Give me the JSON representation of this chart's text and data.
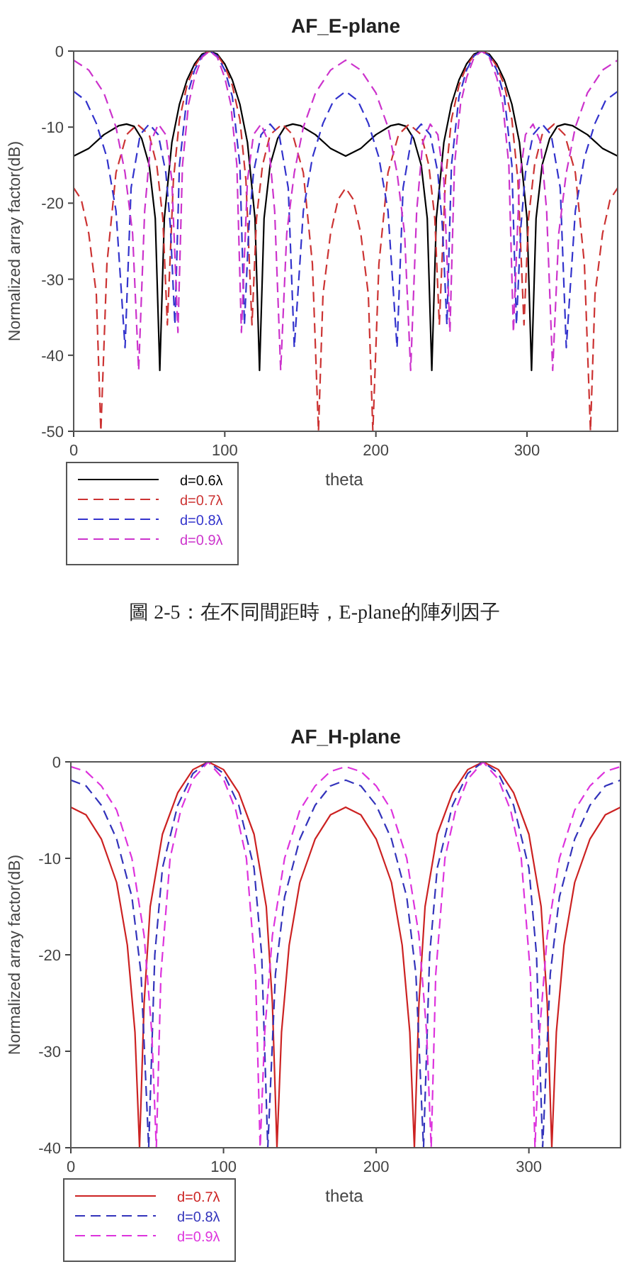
{
  "chart_data": [
    {
      "type": "line",
      "title": "AF_E-plane",
      "xlabel": "theta",
      "ylabel": "Normalized array factor(dB)",
      "xlim": [
        0,
        360
      ],
      "xticks": [
        0,
        100,
        200,
        300
      ],
      "ylim": [
        -50,
        0
      ],
      "yticks": [
        0,
        -10,
        -20,
        -30,
        -40,
        -50
      ],
      "legend": "bottom left",
      "annotations": [
        "圖 2-5：在不同間距時，E-plane的陣列因子"
      ],
      "series": [
        {
          "name": "d=0.6λ",
          "color": "#000000",
          "line_style": "solid",
          "x": [
            0,
            10,
            20,
            30,
            35,
            40,
            45,
            50,
            54,
            57,
            60,
            65,
            70,
            75,
            80,
            85,
            90,
            95,
            100,
            105,
            110,
            115,
            120,
            123,
            126,
            130,
            135,
            140,
            145,
            150,
            160,
            170,
            180,
            190,
            200,
            210,
            215,
            220,
            225,
            230,
            234,
            237,
            240,
            245,
            250,
            255,
            260,
            265,
            270,
            275,
            280,
            285,
            290,
            295,
            300,
            303,
            306,
            310,
            315,
            320,
            325,
            330,
            340,
            350,
            360
          ],
          "values": [
            -13.8,
            -12.8,
            -11,
            -9.8,
            -9.6,
            -9.9,
            -11.5,
            -15,
            -22,
            -42,
            -22,
            -12,
            -7,
            -3.8,
            -1.7,
            -0.4,
            0,
            -0.4,
            -1.7,
            -3.8,
            -7,
            -12,
            -22,
            -42,
            -22,
            -15,
            -11.5,
            -9.9,
            -9.6,
            -9.8,
            -11,
            -12.8,
            -13.8,
            -12.8,
            -11,
            -9.8,
            -9.6,
            -9.9,
            -11.5,
            -15,
            -22,
            -42,
            -22,
            -12,
            -7,
            -3.8,
            -1.7,
            -0.4,
            0,
            -0.4,
            -1.7,
            -3.8,
            -7,
            -12,
            -22,
            -42,
            -22,
            -15,
            -11.5,
            -9.9,
            -9.6,
            -9.8,
            -11,
            -12.8,
            -13.8
          ]
        },
        {
          "name": "d=0.7λ",
          "color": "#cc3333",
          "line_style": "dashed",
          "x": [
            0,
            5,
            10,
            15,
            18,
            22,
            28,
            35,
            42,
            50,
            55,
            59,
            62,
            66,
            70,
            75,
            80,
            85,
            90,
            95,
            100,
            105,
            110,
            114,
            118,
            121,
            125,
            130,
            138,
            145,
            152,
            158,
            162,
            165,
            170,
            175,
            180,
            185,
            190,
            195,
            198,
            202,
            208,
            215,
            222,
            230,
            235,
            239,
            242,
            246,
            250,
            255,
            260,
            265,
            270,
            275,
            280,
            285,
            290,
            294,
            298,
            301,
            305,
            310,
            318,
            325,
            332,
            338,
            342,
            345,
            350,
            355,
            360
          ],
          "values": [
            -18,
            -19.5,
            -24,
            -32,
            -50,
            -28,
            -16,
            -11,
            -9.6,
            -11,
            -15,
            -22,
            -36,
            -17,
            -9,
            -4.5,
            -2,
            -0.5,
            0,
            -0.5,
            -2,
            -4.5,
            -9,
            -17,
            -36,
            -22,
            -15,
            -11,
            -9.6,
            -11,
            -16,
            -28,
            -50,
            -32,
            -24,
            -19.5,
            -18,
            -19.5,
            -24,
            -32,
            -50,
            -28,
            -16,
            -11,
            -9.6,
            -11,
            -15,
            -22,
            -36,
            -17,
            -9,
            -4.5,
            -2,
            -0.5,
            0,
            -0.5,
            -2,
            -4.5,
            -9,
            -17,
            -36,
            -22,
            -15,
            -11,
            -9.6,
            -11,
            -16,
            -28,
            -50,
            -32,
            -24,
            -19.5,
            -18
          ]
        },
        {
          "name": "d=0.8λ",
          "color": "#3333cc",
          "line_style": "dashed",
          "x": [
            0,
            8,
            15,
            22,
            28,
            34,
            38,
            44,
            50,
            56,
            61,
            64,
            67,
            70,
            75,
            80,
            85,
            90,
            95,
            100,
            105,
            110,
            113,
            116,
            119,
            124,
            130,
            136,
            142,
            146,
            152,
            158,
            165,
            172,
            180,
            188,
            195,
            202,
            208,
            214,
            218,
            224,
            230,
            236,
            241,
            244,
            247,
            250,
            255,
            260,
            265,
            270,
            275,
            280,
            285,
            290,
            293,
            296,
            299,
            304,
            310,
            316,
            322,
            326,
            332,
            338,
            345,
            352,
            360
          ],
          "values": [
            -5.3,
            -6.5,
            -9.5,
            -14,
            -21,
            -39,
            -18,
            -11,
            -9.6,
            -11,
            -16,
            -23,
            -36,
            -15,
            -6,
            -2.5,
            -0.6,
            0,
            -0.6,
            -2.5,
            -6,
            -15,
            -36,
            -23,
            -16,
            -11,
            -9.6,
            -11,
            -18,
            -39,
            -21,
            -14,
            -9.5,
            -6.5,
            -5.3,
            -6.5,
            -9.5,
            -14,
            -21,
            -39,
            -18,
            -11,
            -9.6,
            -11,
            -16,
            -23,
            -36,
            -15,
            -6,
            -2.5,
            -0.6,
            0,
            -0.6,
            -2.5,
            -6,
            -15,
            -36,
            -23,
            -16,
            -11,
            -9.6,
            -11,
            -18,
            -39,
            -21,
            -14,
            -9.5,
            -6.5,
            -5.3
          ]
        },
        {
          "name": "d=0.9λ",
          "color": "#cc33cc",
          "line_style": "dashed",
          "x": [
            0,
            10,
            20,
            28,
            34,
            39,
            43,
            47,
            51,
            56,
            61,
            65,
            69,
            72,
            76,
            80,
            85,
            90,
            95,
            100,
            104,
            108,
            111,
            115,
            119,
            124,
            129,
            133,
            137,
            141,
            146,
            152,
            160,
            170,
            180,
            190,
            200,
            208,
            214,
            219,
            223,
            227,
            231,
            236,
            241,
            245,
            249,
            252,
            256,
            260,
            265,
            270,
            275,
            280,
            284,
            288,
            291,
            295,
            299,
            304,
            309,
            313,
            317,
            321,
            326,
            332,
            340,
            350,
            360
          ],
          "values": [
            -1.2,
            -2.5,
            -5.5,
            -10,
            -16,
            -24,
            -42,
            -21,
            -12,
            -9.6,
            -11,
            -17,
            -37,
            -15,
            -7,
            -3.5,
            -0.8,
            0,
            -0.8,
            -3.5,
            -7,
            -15,
            -37,
            -17,
            -11,
            -9.6,
            -12,
            -21,
            -42,
            -24,
            -16,
            -10,
            -5.5,
            -2.5,
            -1.2,
            -2.5,
            -5.5,
            -10,
            -16,
            -24,
            -42,
            -21,
            -12,
            -9.6,
            -11,
            -17,
            -37,
            -15,
            -7,
            -3.5,
            -0.8,
            0,
            -0.8,
            -3.5,
            -7,
            -15,
            -37,
            -17,
            -11,
            -9.6,
            -12,
            -21,
            -42,
            -24,
            -16,
            -10,
            -5.5,
            -2.5,
            -1.2
          ]
        }
      ]
    },
    {
      "type": "line",
      "title": "AF_H-plane",
      "xlabel": "theta",
      "ylabel": "Normalized array factor(dB)",
      "xlim": [
        0,
        360
      ],
      "xticks": [
        0,
        100,
        200,
        300
      ],
      "ylim": [
        -40,
        0
      ],
      "yticks": [
        0,
        -10,
        -20,
        -30,
        -40
      ],
      "legend": "bottom left",
      "series": [
        {
          "name": "d=0.7λ",
          "color": "#cc2222",
          "line_style": "solid",
          "x": [
            0,
            10,
            20,
            30,
            37,
            42,
            45,
            48,
            52,
            60,
            70,
            80,
            90,
            100,
            110,
            120,
            128,
            132,
            135,
            138,
            143,
            150,
            160,
            170,
            180,
            190,
            200,
            210,
            217,
            222,
            225,
            228,
            232,
            240,
            250,
            260,
            270,
            280,
            290,
            300,
            308,
            312,
            315,
            318,
            323,
            330,
            340,
            350,
            360
          ],
          "values": [
            -4.7,
            -5.5,
            -8,
            -12.5,
            -19,
            -28,
            -40,
            -25,
            -15,
            -7.5,
            -3.2,
            -0.8,
            0,
            -0.8,
            -3.2,
            -7.5,
            -15,
            -25,
            -40,
            -28,
            -19,
            -12.5,
            -8,
            -5.5,
            -4.7,
            -5.5,
            -8,
            -12.5,
            -19,
            -28,
            -40,
            -25,
            -15,
            -7.5,
            -3.2,
            -0.8,
            0,
            -0.8,
            -3.2,
            -7.5,
            -15,
            -25,
            -40,
            -28,
            -19,
            -12.5,
            -8,
            -5.5,
            -4.7
          ]
        },
        {
          "name": "d=0.8λ",
          "color": "#3333bb",
          "line_style": "dashed",
          "x": [
            0,
            10,
            20,
            30,
            40,
            46,
            51,
            55,
            60,
            70,
            80,
            90,
            100,
            110,
            120,
            125,
            129,
            134,
            140,
            150,
            160,
            170,
            180,
            190,
            200,
            210,
            220,
            226,
            231,
            235,
            240,
            250,
            260,
            270,
            280,
            290,
            300,
            305,
            309,
            314,
            320,
            330,
            340,
            350,
            360
          ],
          "values": [
            -1.9,
            -2.5,
            -4.5,
            -8,
            -14,
            -22,
            -40,
            -20,
            -11,
            -4.5,
            -1.2,
            0,
            -1.2,
            -4.5,
            -11,
            -20,
            -40,
            -22,
            -14,
            -8,
            -4.5,
            -2.5,
            -1.9,
            -2.5,
            -4.5,
            -8,
            -14,
            -22,
            -40,
            -20,
            -11,
            -4.5,
            -1.2,
            0,
            -1.2,
            -4.5,
            -11,
            -20,
            -40,
            -22,
            -14,
            -8,
            -4.5,
            -2.5,
            -1.9
          ]
        },
        {
          "name": "d=0.9λ",
          "color": "#dd33dd",
          "line_style": "dashed",
          "x": [
            0,
            10,
            20,
            30,
            40,
            48,
            53,
            56,
            59,
            65,
            72,
            80,
            90,
            100,
            108,
            115,
            121,
            124,
            127,
            132,
            140,
            150,
            160,
            170,
            180,
            190,
            200,
            210,
            220,
            228,
            233,
            236,
            239,
            245,
            252,
            260,
            270,
            280,
            288,
            295,
            301,
            304,
            307,
            312,
            320,
            330,
            340,
            350,
            360
          ],
          "values": [
            -0.5,
            -1,
            -2.5,
            -5,
            -10,
            -18,
            -28,
            -40,
            -22,
            -10,
            -5,
            -1.8,
            0,
            -1.8,
            -5,
            -10,
            -22,
            -40,
            -28,
            -18,
            -10,
            -5,
            -2.5,
            -1,
            -0.5,
            -1,
            -2.5,
            -5,
            -10,
            -18,
            -28,
            -40,
            -22,
            -10,
            -5,
            -1.8,
            0,
            -1.8,
            -5,
            -10,
            -22,
            -40,
            -28,
            -18,
            -10,
            -5,
            -2.5,
            -1,
            -0.5
          ]
        }
      ]
    }
  ]
}
